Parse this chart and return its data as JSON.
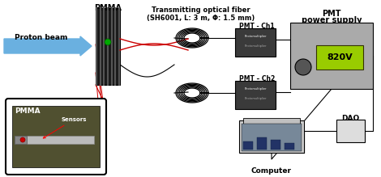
{
  "bg_color": "#ffffff",
  "proton_beam_text": "Proton beam",
  "pmma_top_text": "PMMA",
  "fiber_text_line1": "Transmitting optical fiber",
  "fiber_text_line2": "(SH6001, L: 3 m, Φ: 1.5 mm)",
  "pmt_ch1_text": "PMT - Ch1",
  "pmt_ch2_text": "PMT – Ch2",
  "pmt_supply_title_line1": "PMT",
  "pmt_supply_title_line2": "power supply",
  "daq_text": "DAQ",
  "computer_text": "Computer",
  "pmma_inset_text": "PMMA",
  "sensors_text": "Sensors",
  "arrow_color": "#6ab0e0",
  "pmma_bg_color": "#1a1a1a",
  "inset_bg": "#505030",
  "red_line_color": "#cc0000",
  "supply_green": "#99cc00",
  "supply_text": "820V",
  "pmt_photomultiplier": "Photomultiplier"
}
